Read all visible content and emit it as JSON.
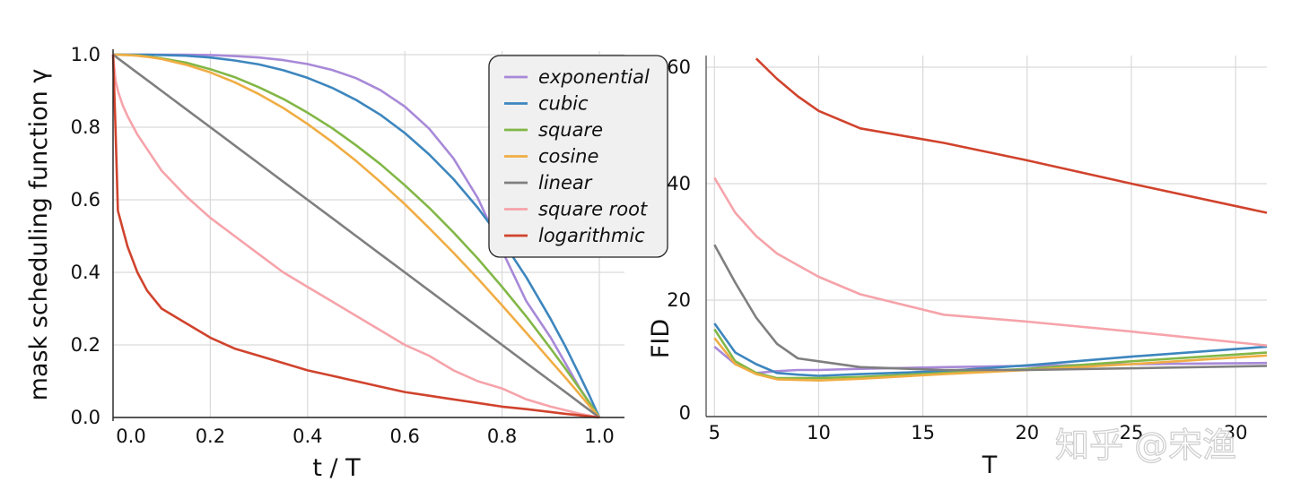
{
  "watermark": "知乎 @宋渔",
  "colors": {
    "exponential": "#a889d8",
    "cubic": "#3d86be",
    "square": "#82b747",
    "cosine": "#f0ad44",
    "linear": "#7f7f7f",
    "square_root": "#f6a3aa",
    "logarithmic": "#d0432d",
    "grid": "#d9d9d9"
  },
  "chart_data": [
    {
      "type": "line",
      "xlabel": "t / T",
      "ylabel": "mask scheduling function  γ",
      "xlim": [
        0,
        1
      ],
      "ylim": [
        0,
        1
      ],
      "xticks": [
        "0.0",
        "0.2",
        "0.4",
        "0.6",
        "0.8",
        "1.0"
      ],
      "yticks": [
        "0.0",
        "0.2",
        "0.4",
        "0.6",
        "0.8",
        "1.0"
      ],
      "grid": true,
      "legend_position": "top-right",
      "x": [
        0,
        0.005,
        0.01,
        0.02,
        0.03,
        0.05,
        0.07,
        0.1,
        0.15,
        0.2,
        0.25,
        0.3,
        0.35,
        0.4,
        0.45,
        0.5,
        0.55,
        0.6,
        0.65,
        0.7,
        0.75,
        0.8,
        0.85,
        0.9,
        0.93,
        0.96,
        0.98,
        1.0
      ],
      "series": [
        {
          "name": "exponential",
          "color_key": "exponential",
          "values": [
            1.0,
            1.0,
            1.0,
            1.0,
            1.0,
            1.0,
            1.0,
            1.0,
            1.0,
            0.999,
            0.996,
            0.992,
            0.985,
            0.974,
            0.958,
            0.935,
            0.902,
            0.857,
            0.796,
            0.714,
            0.605,
            0.46,
            0.32,
            0.22,
            0.15,
            0.08,
            0.04,
            0.0
          ]
        },
        {
          "name": "cubic",
          "color_key": "cubic",
          "values": [
            1.0,
            1.0,
            1.0,
            1.0,
            1.0,
            1.0,
            1.0,
            0.999,
            0.997,
            0.992,
            0.984,
            0.973,
            0.957,
            0.936,
            0.909,
            0.875,
            0.834,
            0.784,
            0.725,
            0.657,
            0.578,
            0.488,
            0.386,
            0.271,
            0.196,
            0.115,
            0.059,
            0.0
          ]
        },
        {
          "name": "square",
          "color_key": "square",
          "values": [
            1.0,
            1.0,
            1.0,
            1.0,
            0.999,
            0.998,
            0.995,
            0.99,
            0.978,
            0.96,
            0.938,
            0.91,
            0.878,
            0.84,
            0.798,
            0.75,
            0.698,
            0.64,
            0.578,
            0.51,
            0.438,
            0.36,
            0.278,
            0.19,
            0.135,
            0.078,
            0.04,
            0.0
          ]
        },
        {
          "name": "cosine",
          "color_key": "cosine",
          "values": [
            1.0,
            1.0,
            1.0,
            0.999,
            0.999,
            0.997,
            0.994,
            0.988,
            0.972,
            0.951,
            0.924,
            0.891,
            0.853,
            0.809,
            0.76,
            0.707,
            0.649,
            0.588,
            0.522,
            0.454,
            0.383,
            0.309,
            0.233,
            0.156,
            0.11,
            0.063,
            0.031,
            0.0
          ]
        },
        {
          "name": "linear",
          "color_key": "linear",
          "values": [
            1.0,
            0.995,
            0.99,
            0.98,
            0.97,
            0.95,
            0.93,
            0.9,
            0.85,
            0.8,
            0.75,
            0.7,
            0.65,
            0.6,
            0.55,
            0.5,
            0.45,
            0.4,
            0.35,
            0.3,
            0.25,
            0.2,
            0.15,
            0.1,
            0.07,
            0.04,
            0.02,
            0.0
          ]
        },
        {
          "name": "square root",
          "color_key": "square_root",
          "values": [
            1.0,
            0.93,
            0.9,
            0.86,
            0.83,
            0.78,
            0.74,
            0.68,
            0.61,
            0.55,
            0.5,
            0.45,
            0.4,
            0.36,
            0.32,
            0.28,
            0.24,
            0.2,
            0.17,
            0.13,
            0.1,
            0.08,
            0.05,
            0.03,
            0.02,
            0.01,
            0.005,
            0.0
          ]
        },
        {
          "name": "logarithmic",
          "color_key": "logarithmic",
          "values": [
            1.0,
            0.8,
            0.57,
            0.52,
            0.47,
            0.4,
            0.35,
            0.3,
            0.26,
            0.22,
            0.19,
            0.17,
            0.15,
            0.13,
            0.115,
            0.1,
            0.085,
            0.07,
            0.06,
            0.05,
            0.04,
            0.03,
            0.023,
            0.015,
            0.01,
            0.006,
            0.003,
            0.0
          ]
        }
      ]
    },
    {
      "type": "line",
      "xlabel": "T",
      "ylabel": "FID",
      "xlim": [
        4.6,
        31.5
      ],
      "ylim": [
        0,
        62
      ],
      "xticks": [
        "5",
        "10",
        "15",
        "20",
        "25",
        "30"
      ],
      "yticks": [
        "0",
        "20",
        "40",
        "60"
      ],
      "grid": true,
      "x": [
        5,
        6,
        7,
        8,
        9,
        10,
        12,
        16,
        20,
        25,
        31.5
      ],
      "series": [
        {
          "name": "exponential",
          "color_key": "exponential",
          "values": [
            12,
            9,
            7.5,
            7.8,
            8.0,
            8.0,
            8.2,
            8.5,
            8.7,
            9.0,
            9.2
          ]
        },
        {
          "name": "cubic",
          "color_key": "cubic",
          "values": [
            16,
            11,
            9,
            7.5,
            7.2,
            7.0,
            7.3,
            7.8,
            8.8,
            10.3,
            12.0
          ]
        },
        {
          "name": "square",
          "color_key": "square",
          "values": [
            15,
            9.5,
            7.5,
            6.6,
            6.6,
            6.6,
            6.8,
            7.5,
            8.2,
            9.5,
            11.0
          ]
        },
        {
          "name": "cosine",
          "color_key": "cosine",
          "values": [
            13.5,
            9,
            7.3,
            6.4,
            6.3,
            6.2,
            6.5,
            7.3,
            8.0,
            9.0,
            10.5
          ]
        },
        {
          "name": "linear",
          "color_key": "linear",
          "values": [
            29.5,
            23,
            17,
            12.5,
            10,
            9.5,
            8.5,
            8.0,
            8.0,
            8.3,
            8.7
          ]
        },
        {
          "name": "square root",
          "color_key": "square_root",
          "values": [
            41,
            35,
            31,
            28,
            26,
            24,
            21,
            17.5,
            16.3,
            14.6,
            12.2
          ]
        },
        {
          "name": "logarithmic",
          "color_key": "logarithmic",
          "values": [
            null,
            null,
            61.5,
            58,
            55,
            52.5,
            49.5,
            47,
            44,
            40,
            35
          ]
        }
      ]
    }
  ]
}
